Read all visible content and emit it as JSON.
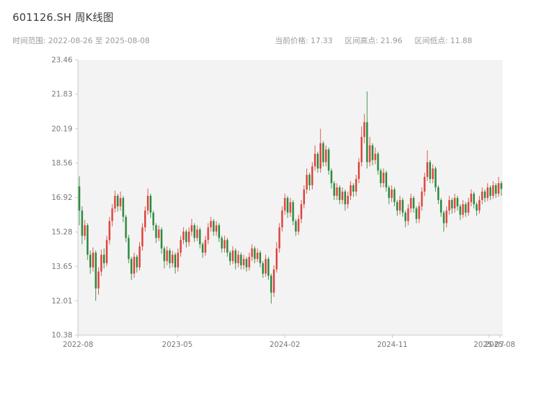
{
  "header": {
    "title": "601126.SH 周K线图",
    "time_range_label": "时间范围: 2022-08-26 至 2025-08-08",
    "current_price_label": "当前价格: 17.33",
    "range_high_label": "区间高点: 21.96",
    "range_low_label": "区间低点: 11.88"
  },
  "chart_data": {
    "type": "candlestick",
    "title": "601126.SH 周K线图",
    "symbol": "601126.SH",
    "frequency": "weekly",
    "time_range": {
      "start": "2022-08-26",
      "end": "2025-08-08"
    },
    "current_price": 17.33,
    "range_high": 21.96,
    "range_low": 11.88,
    "ylim": [
      10.38,
      23.46
    ],
    "yticks": [
      10.38,
      12.01,
      13.65,
      15.28,
      16.92,
      18.56,
      20.19,
      21.83,
      23.46
    ],
    "xticks": [
      {
        "index": 0,
        "label": "2022-08"
      },
      {
        "index": 36,
        "label": "2023-05"
      },
      {
        "index": 75,
        "label": "2024-02"
      },
      {
        "index": 114,
        "label": "2024-11"
      },
      {
        "index": 149,
        "label": "2025-07"
      },
      {
        "index": 153,
        "label": "2025-08"
      }
    ],
    "up_color": "#e0463e",
    "down_color": "#2e8b3e",
    "plot_bg": "#f3f3f3",
    "axis_color": "#c8c8c8",
    "tick_text_color": "#777777",
    "open": [
      17.45,
      16.3,
      15.1,
      15.6,
      14.2,
      13.6,
      14.3,
      12.6,
      13.4,
      14.2,
      13.8,
      14.9,
      15.8,
      16.4,
      17.0,
      16.5,
      16.9,
      16.0,
      15.0,
      14.0,
      13.3,
      14.1,
      13.6,
      14.6,
      15.5,
      16.3,
      17.0,
      16.2,
      15.6,
      15.0,
      15.4,
      14.5,
      13.9,
      14.4,
      13.8,
      14.2,
      13.6,
      14.3,
      14.9,
      15.3,
      14.8,
      15.3,
      15.6,
      15.0,
      15.4,
      14.7,
      14.3,
      14.9,
      15.5,
      15.8,
      15.3,
      15.6,
      15.0,
      14.5,
      14.9,
      14.3,
      13.9,
      14.4,
      13.8,
      14.2,
      13.7,
      14.0,
      13.6,
      14.1,
      14.5,
      14.0,
      14.3,
      13.8,
      13.3,
      14.0,
      13.2,
      12.4,
      13.5,
      14.5,
      15.5,
      16.3,
      16.9,
      16.2,
      16.7,
      15.8,
      15.3,
      15.9,
      16.6,
      17.3,
      18.0,
      17.5,
      18.4,
      19.0,
      18.3,
      19.5,
      18.6,
      19.2,
      18.2,
      17.6,
      17.0,
      17.4,
      16.8,
      17.2,
      16.6,
      17.0,
      17.5,
      17.2,
      17.8,
      18.6,
      19.8,
      20.5,
      18.6,
      19.4,
      18.7,
      19.0,
      18.2,
      17.6,
      18.1,
      17.4,
      16.9,
      17.3,
      16.7,
      16.3,
      16.8,
      16.2,
      15.8,
      16.4,
      16.9,
      16.4,
      15.9,
      16.5,
      17.2,
      17.9,
      18.6,
      17.8,
      18.3,
      17.4,
      16.8,
      16.2,
      15.7,
      16.3,
      16.8,
      16.4,
      16.9,
      16.5,
      16.1,
      16.6,
      16.2,
      16.7,
      17.1,
      16.6,
      16.3,
      16.8,
      17.2,
      16.9,
      17.4,
      17.0,
      17.5,
      17.1,
      17.6
    ],
    "high": [
      17.93,
      16.5,
      15.85,
      15.7,
      14.4,
      14.55,
      14.4,
      13.6,
      14.45,
      14.5,
      15.1,
      16.0,
      16.6,
      17.25,
      17.1,
      17.2,
      17.0,
      16.1,
      15.15,
      14.1,
      14.3,
      14.2,
      14.8,
      15.7,
      16.5,
      17.35,
      17.1,
      16.3,
      15.7,
      15.6,
      15.5,
      14.6,
      14.6,
      14.5,
      14.4,
      14.3,
      14.5,
      15.1,
      15.5,
      15.4,
      15.5,
      15.9,
      15.7,
      15.6,
      15.5,
      14.8,
      15.1,
      15.7,
      16.0,
      15.9,
      15.8,
      15.7,
      15.1,
      15.1,
      15.0,
      14.4,
      14.6,
      14.5,
      14.4,
      14.3,
      14.2,
      14.1,
      14.3,
      14.7,
      14.6,
      14.5,
      14.4,
      13.9,
      14.2,
      14.1,
      13.3,
      13.7,
      14.8,
      15.7,
      16.5,
      17.1,
      17.0,
      16.9,
      16.8,
      15.9,
      16.1,
      16.8,
      17.5,
      18.3,
      18.1,
      18.6,
      19.4,
      19.1,
      20.19,
      19.6,
      19.4,
      19.3,
      18.3,
      17.7,
      17.6,
      17.5,
      17.4,
      17.3,
      17.2,
      17.7,
      17.6,
      18.0,
      18.8,
      20.3,
      20.9,
      21.96,
      19.8,
      19.5,
      19.3,
      19.1,
      18.3,
      18.3,
      18.2,
      17.5,
      17.5,
      17.4,
      16.8,
      17.0,
      16.9,
      16.3,
      16.6,
      17.1,
      17.0,
      16.5,
      16.7,
      17.4,
      18.1,
      19.16,
      18.7,
      18.5,
      18.4,
      17.5,
      16.9,
      16.3,
      16.5,
      17.0,
      16.9,
      17.1,
      17.0,
      16.6,
      16.8,
      16.7,
      16.9,
      17.3,
      17.2,
      16.7,
      17.0,
      17.4,
      17.3,
      17.6,
      17.5,
      17.7,
      17.6,
      17.9,
      17.7
    ],
    "low": [
      15.6,
      14.7,
      14.9,
      13.95,
      13.3,
      13.4,
      12.01,
      12.3,
      13.2,
      13.55,
      13.65,
      14.7,
      15.55,
      16.2,
      16.25,
      16.3,
      15.75,
      14.8,
      13.8,
      13.0,
      13.1,
      13.35,
      13.45,
      14.4,
      15.3,
      16.1,
      15.95,
      15.35,
      14.75,
      14.85,
      14.25,
      13.55,
      13.7,
      13.55,
      13.6,
      13.3,
      13.4,
      14.1,
      14.7,
      14.55,
      14.6,
      15.1,
      14.8,
      14.85,
      14.5,
      14.05,
      14.15,
      14.7,
      15.3,
      15.1,
      15.1,
      14.8,
      14.3,
      14.3,
      14.1,
      13.7,
      13.75,
      13.5,
      13.6,
      13.5,
      13.5,
      13.4,
      13.45,
      13.9,
      13.8,
      13.85,
      13.6,
      13.1,
      13.15,
      13.0,
      11.88,
      12.2,
      13.35,
      14.3,
      15.3,
      16.1,
      15.95,
      16.0,
      15.6,
      15.1,
      15.15,
      15.7,
      16.4,
      17.1,
      17.25,
      17.3,
      18.2,
      18.1,
      18.1,
      18.4,
      18.4,
      18.0,
      17.35,
      16.8,
      16.8,
      16.6,
      16.6,
      16.3,
      16.4,
      16.8,
      16.95,
      17.0,
      17.6,
      18.4,
      19.5,
      18.3,
      18.4,
      18.45,
      18.5,
      18.0,
      17.4,
      17.4,
      17.2,
      16.6,
      16.7,
      16.5,
      16.05,
      16.1,
      16.0,
      15.5,
      15.6,
      16.2,
      16.2,
      15.7,
      15.7,
      16.3,
      17.0,
      17.7,
      17.6,
      17.6,
      17.2,
      16.6,
      16.0,
      15.3,
      15.5,
      16.1,
      16.15,
      16.2,
      16.3,
      15.85,
      15.95,
      16.0,
      16.05,
      16.5,
      16.4,
      16.05,
      16.15,
      16.6,
      16.7,
      16.75,
      16.8,
      16.85,
      16.9,
      16.95,
      17.0
    ],
    "close": [
      16.3,
      15.1,
      15.6,
      14.2,
      13.6,
      14.3,
      12.6,
      13.4,
      14.2,
      13.8,
      14.9,
      15.8,
      16.4,
      17.0,
      16.5,
      16.9,
      16.0,
      15.0,
      14.0,
      13.3,
      14.1,
      13.6,
      14.6,
      15.5,
      16.3,
      17.0,
      16.2,
      15.6,
      15.0,
      15.4,
      14.5,
      13.9,
      14.4,
      13.8,
      14.2,
      13.6,
      14.3,
      14.9,
      15.3,
      14.8,
      15.3,
      15.6,
      15.0,
      15.4,
      14.7,
      14.3,
      14.9,
      15.5,
      15.8,
      15.3,
      15.6,
      15.0,
      14.5,
      14.9,
      14.3,
      13.9,
      14.4,
      13.8,
      14.2,
      13.7,
      14.0,
      13.6,
      14.1,
      14.5,
      14.0,
      14.3,
      13.8,
      13.3,
      14.0,
      13.2,
      12.4,
      13.5,
      14.5,
      15.5,
      16.3,
      16.9,
      16.2,
      16.7,
      15.8,
      15.3,
      15.9,
      16.6,
      17.3,
      18.0,
      17.5,
      18.4,
      19.0,
      18.3,
      19.5,
      18.6,
      19.2,
      18.2,
      17.6,
      17.0,
      17.4,
      16.8,
      17.2,
      16.6,
      17.0,
      17.5,
      17.2,
      17.8,
      18.6,
      19.8,
      20.5,
      18.6,
      19.4,
      18.7,
      19.0,
      18.2,
      17.6,
      18.1,
      17.4,
      16.9,
      17.3,
      16.7,
      16.3,
      16.8,
      16.2,
      15.8,
      16.4,
      16.9,
      16.4,
      15.9,
      16.5,
      17.2,
      17.9,
      18.6,
      17.8,
      18.3,
      17.4,
      16.8,
      16.2,
      15.7,
      16.3,
      16.8,
      16.4,
      16.9,
      16.5,
      16.1,
      16.6,
      16.2,
      16.7,
      17.1,
      16.6,
      16.3,
      16.8,
      17.2,
      16.9,
      17.4,
      17.0,
      17.5,
      17.1,
      17.6,
      17.33
    ]
  }
}
